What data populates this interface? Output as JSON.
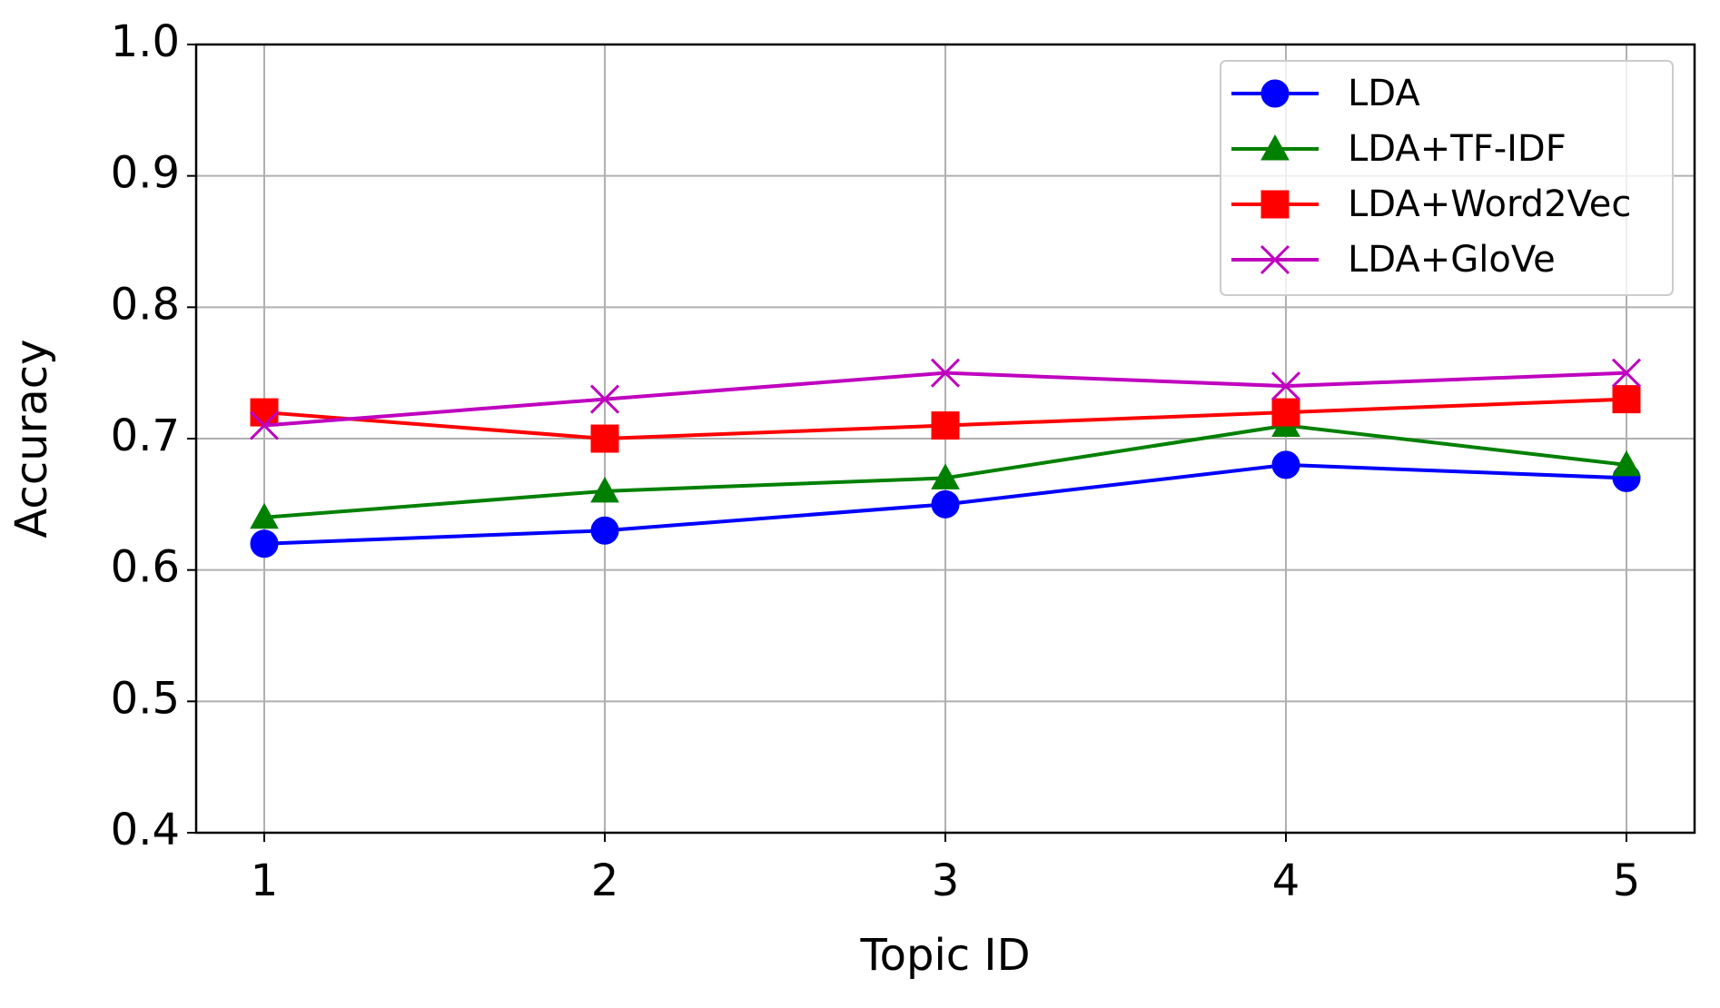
{
  "chart_data": {
    "type": "line",
    "x_label": "Topic ID",
    "y_label": "Accuracy",
    "x": [
      1,
      2,
      3,
      4,
      5
    ],
    "series": [
      {
        "name": "LDA",
        "color": "#0000ff",
        "marker": "circle",
        "values": [
          0.62,
          0.63,
          0.65,
          0.68,
          0.67
        ]
      },
      {
        "name": "LDA+TF-IDF",
        "color": "#008000",
        "marker": "triangle",
        "values": [
          0.64,
          0.66,
          0.67,
          0.71,
          0.68
        ]
      },
      {
        "name": "LDA+Word2Vec",
        "color": "#ff0000",
        "marker": "square",
        "values": [
          0.72,
          0.7,
          0.71,
          0.72,
          0.73
        ]
      },
      {
        "name": "LDA+GloVe",
        "color": "#bf00bf",
        "marker": "x",
        "values": [
          0.71,
          0.73,
          0.75,
          0.74,
          0.75
        ]
      }
    ],
    "xlim": [
      0.8,
      5.2
    ],
    "xticks": [
      1,
      2,
      3,
      4,
      5
    ],
    "ylim": [
      0.4,
      1.0
    ],
    "yticks": [
      0.4,
      0.5,
      0.6,
      0.7,
      0.8,
      0.9,
      {
        "value": 1.0,
        "label": "1.0"
      }
    ],
    "grid": true,
    "legend": "upper right"
  }
}
